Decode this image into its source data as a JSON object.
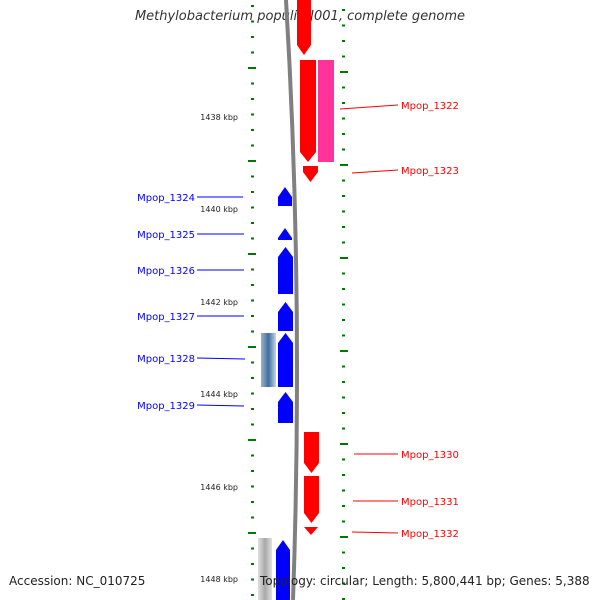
{
  "title": "Methylobacterium populi BJ001, complete genome",
  "footer": {
    "accession": "Accession: NC_010725",
    "topology": "Topology: circular; Length: 5,800,441 bp; Genes: 5,388"
  },
  "colors": {
    "forward": "#ff0000",
    "reverse": "#0000ff",
    "pink": "#ff3399",
    "gray": "#c0c0c0",
    "tick": "#007700",
    "backbone": "#808080"
  },
  "scale": {
    "unit": "kbp",
    "labels": [
      "1438 kbp",
      "1440 kbp",
      "1442 kbp",
      "1444 kbp",
      "1446 kbp",
      "1448 kbp"
    ]
  },
  "genes": [
    {
      "name": "",
      "strand": "forward",
      "color_key": "forward"
    },
    {
      "name": "Mpop_1322",
      "strand": "forward",
      "color_key": "forward"
    },
    {
      "name": "",
      "strand": "forward",
      "color_key": "pink"
    },
    {
      "name": "Mpop_1323",
      "strand": "forward",
      "color_key": "forward"
    },
    {
      "name": "Mpop_1324",
      "strand": "reverse",
      "color_key": "reverse"
    },
    {
      "name": "Mpop_1325",
      "strand": "reverse",
      "color_key": "reverse"
    },
    {
      "name": "Mpop_1326",
      "strand": "reverse",
      "color_key": "reverse"
    },
    {
      "name": "Mpop_1327",
      "strand": "reverse",
      "color_key": "reverse"
    },
    {
      "name": "Mpop_1328",
      "strand": "reverse",
      "color_key": "reverse"
    },
    {
      "name": "",
      "strand": "reverse",
      "color_key": "gray"
    },
    {
      "name": "Mpop_1329",
      "strand": "reverse",
      "color_key": "reverse"
    },
    {
      "name": "Mpop_1330",
      "strand": "forward",
      "color_key": "forward"
    },
    {
      "name": "Mpop_1331",
      "strand": "forward",
      "color_key": "forward"
    },
    {
      "name": "Mpop_1332",
      "strand": "forward",
      "color_key": "forward"
    },
    {
      "name": "",
      "strand": "reverse",
      "color_key": "reverse"
    },
    {
      "name": "",
      "strand": "reverse",
      "color_key": "gray"
    }
  ]
}
